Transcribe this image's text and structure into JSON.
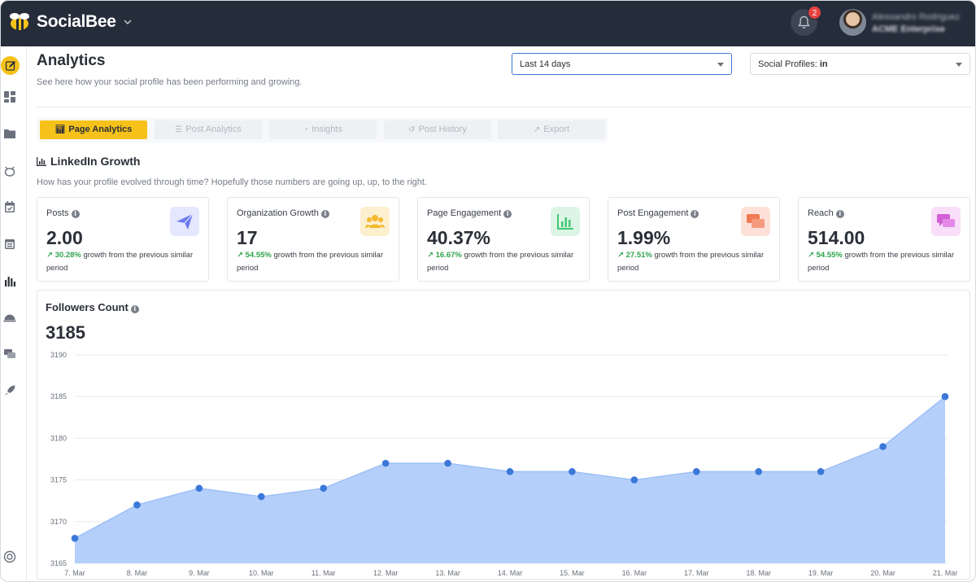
{
  "app": {
    "brand": "SocialBee",
    "notification_count": "2",
    "user_name": "Alessandro Rodriguez",
    "user_org": "ACME Enterprise"
  },
  "header": {
    "title": "Analytics",
    "subtitle": "See here how your social profile has been performing and growing.",
    "date_range": "Last 14 days",
    "profiles_label": "Social Profiles:",
    "profiles_value": "in"
  },
  "tabs": [
    {
      "label": "Page Analytics",
      "icon": "bar-chart-icon"
    },
    {
      "label": "Post Analytics",
      "icon": "list-icon"
    },
    {
      "label": "Insights",
      "icon": "pie-icon"
    },
    {
      "label": "Post History",
      "icon": "history-icon"
    },
    {
      "label": "Export",
      "icon": "export-icon"
    }
  ],
  "section": {
    "title": "LinkedIn Growth",
    "subtitle": "How has your profile evolved through time? Hopefully those numbers are going up, up, to the right."
  },
  "growth_suffix": "growth from the previous similar period",
  "cards": [
    {
      "label": "Posts",
      "value": "2.00",
      "growth": "30.28%",
      "icon": "paper-plane-icon",
      "color": "#6d7bf0",
      "bg": "#e4e7fd"
    },
    {
      "label": "Organization Growth",
      "value": "17",
      "growth": "54.55%",
      "icon": "users-icon",
      "color": "#f5b82e",
      "bg": "#fdf0cf"
    },
    {
      "label": "Page Engagement",
      "value": "40.37%",
      "growth": "16.67%",
      "icon": "bar-chart-icon",
      "color": "#41c774",
      "bg": "#dcf5e5"
    },
    {
      "label": "Post Engagement",
      "value": "1.99%",
      "growth": "27.51%",
      "icon": "chat-icon",
      "color": "#f07a55",
      "bg": "#fde1d8"
    },
    {
      "label": "Reach",
      "value": "514.00",
      "growth": "54.55%",
      "icon": "messages-icon",
      "color": "#d35fd6",
      "bg": "#f8def8"
    }
  ],
  "followers": {
    "title": "Followers Count",
    "value": "3185"
  },
  "chart_data": {
    "type": "area",
    "categories": [
      "7. Mar",
      "8. Mar",
      "9. Mar",
      "10. Mar",
      "11. Mar",
      "12. Mar",
      "13. Mar",
      "14. Mar",
      "15. Mar",
      "16. Mar",
      "17. Mar",
      "18. Mar",
      "19. Mar",
      "20. Mar",
      "21. Mar"
    ],
    "series": [
      {
        "values": [
          3168,
          3172,
          3174,
          3173,
          3174,
          3177,
          3177,
          3176,
          3176,
          3175,
          3176,
          3176,
          3176,
          3179,
          3185
        ]
      }
    ],
    "yticks": [
      3165,
      3170,
      3175,
      3180,
      3185,
      3190
    ],
    "ylim": [
      3165,
      3190
    ],
    "grid": true,
    "fill_color": "#b4cffa",
    "point_color": "#3b78d8"
  }
}
